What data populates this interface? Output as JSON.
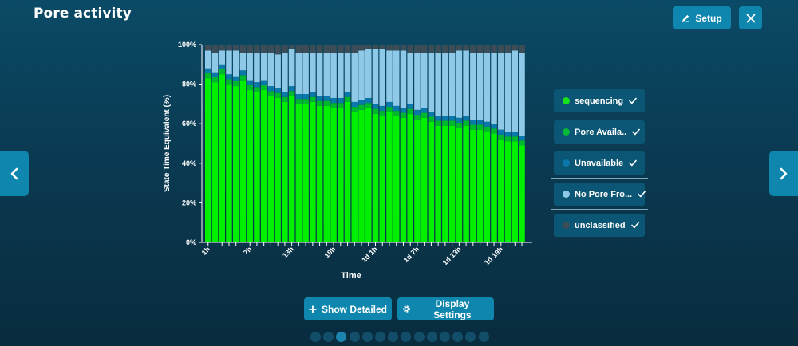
{
  "header": {
    "title": "Pore activity",
    "setup_label": "Setup"
  },
  "footer": {
    "show_detailed_label": "Show Detailed",
    "display_settings_label": "Display Settings",
    "pager_count": 14,
    "pager_active_index": 2
  },
  "colors": {
    "accent": "#0e86ad",
    "sequencing": "#00f000",
    "pore_available": "#00b82e",
    "unavailable": "#0a78a8",
    "no_pore": "#8ecae8",
    "unclassified": "#3d4d57"
  },
  "legend": [
    {
      "label": "sequencing",
      "color": "#18e21c"
    },
    {
      "label": "Pore Availa..",
      "color": "#06b838"
    },
    {
      "label": "Unavailable",
      "color": "#0a78a8"
    },
    {
      "label": "No Pore Fro...",
      "color": "#8ecae8"
    },
    {
      "label": "unclassified",
      "color": "#3d4d57"
    }
  ],
  "chart_data": {
    "type": "bar",
    "stacked": true,
    "xlabel": "Time",
    "ylabel": "State Time Equivalent (%)",
    "ylim": [
      0,
      100
    ],
    "yticks": [
      "0%",
      "20%",
      "40%",
      "60%",
      "80%",
      "100%"
    ],
    "xticks": [
      {
        "index": 0,
        "label": "1h"
      },
      {
        "index": 6,
        "label": "7h"
      },
      {
        "index": 12,
        "label": "13h"
      },
      {
        "index": 18,
        "label": "19h"
      },
      {
        "index": 24,
        "label": "1d 1h"
      },
      {
        "index": 30,
        "label": "1d 7h"
      },
      {
        "index": 36,
        "label": "1d 13h"
      },
      {
        "index": 42,
        "label": "1d 19h"
      }
    ],
    "series": [
      {
        "name": "sequencing",
        "values": [
          83,
          81,
          85,
          80,
          79,
          82,
          77,
          76,
          77,
          74,
          73,
          71,
          74,
          70,
          70,
          71,
          69,
          69,
          68,
          68,
          71,
          66,
          67,
          68,
          65,
          64,
          66,
          64,
          63,
          65,
          62,
          63,
          61,
          59,
          59,
          59,
          58,
          59,
          57,
          57,
          56,
          55,
          52,
          51,
          51,
          49
        ]
      },
      {
        "name": "Pore Availa..",
        "values": [
          2.5,
          2.5,
          2.5,
          2.5,
          2.5,
          2.5,
          2.5,
          2.5,
          2.5,
          2.5,
          2.5,
          2.5,
          2.5,
          2.5,
          2.5,
          2.5,
          2.5,
          2.5,
          2.5,
          2.5,
          2.5,
          2.5,
          2.5,
          2.5,
          2.5,
          2.5,
          2.5,
          2.5,
          2.5,
          2.5,
          2.5,
          2.5,
          2.5,
          2.5,
          2.5,
          2.5,
          2.5,
          2.5,
          2.5,
          2.5,
          2.5,
          2.5,
          2.5,
          2.5,
          2.5,
          2.5
        ]
      },
      {
        "name": "Unavailable",
        "values": [
          2.5,
          2.5,
          2.5,
          2.5,
          2.5,
          2.5,
          2.5,
          2.5,
          2.5,
          2.5,
          2.5,
          2.5,
          2.5,
          2.5,
          2.5,
          2.5,
          2.5,
          2.5,
          2.5,
          2.5,
          2.5,
          2.5,
          2.5,
          2.5,
          2.5,
          2.5,
          2.5,
          2.5,
          2.5,
          2.5,
          2.5,
          2.5,
          2.5,
          2.5,
          2.5,
          2.5,
          2.5,
          2.5,
          2.5,
          2.5,
          2.5,
          2.5,
          2.5,
          2.5,
          2.5,
          2.5
        ]
      },
      {
        "name": "No Pore Fro...",
        "values": [
          9,
          10,
          7,
          12,
          13,
          9,
          14,
          15,
          14,
          17,
          17,
          20,
          19,
          21,
          21,
          20,
          22,
          22,
          23,
          23,
          20,
          25,
          25,
          25,
          28,
          29,
          26,
          28,
          29,
          26,
          29,
          28,
          30,
          32,
          32,
          32,
          34,
          33,
          34,
          34,
          35,
          36,
          39,
          40,
          41,
          42
        ]
      },
      {
        "name": "unclassified",
        "values": [
          3,
          4,
          3,
          3,
          3,
          4,
          4,
          4,
          4,
          4,
          5,
          4,
          2,
          4,
          4,
          4,
          4,
          4,
          4,
          4,
          4,
          4,
          3,
          2,
          2,
          2,
          3,
          3,
          3,
          4,
          4,
          4,
          4,
          4,
          4,
          4,
          3,
          3,
          4,
          4,
          4,
          4,
          4,
          4,
          3,
          4
        ]
      }
    ]
  }
}
